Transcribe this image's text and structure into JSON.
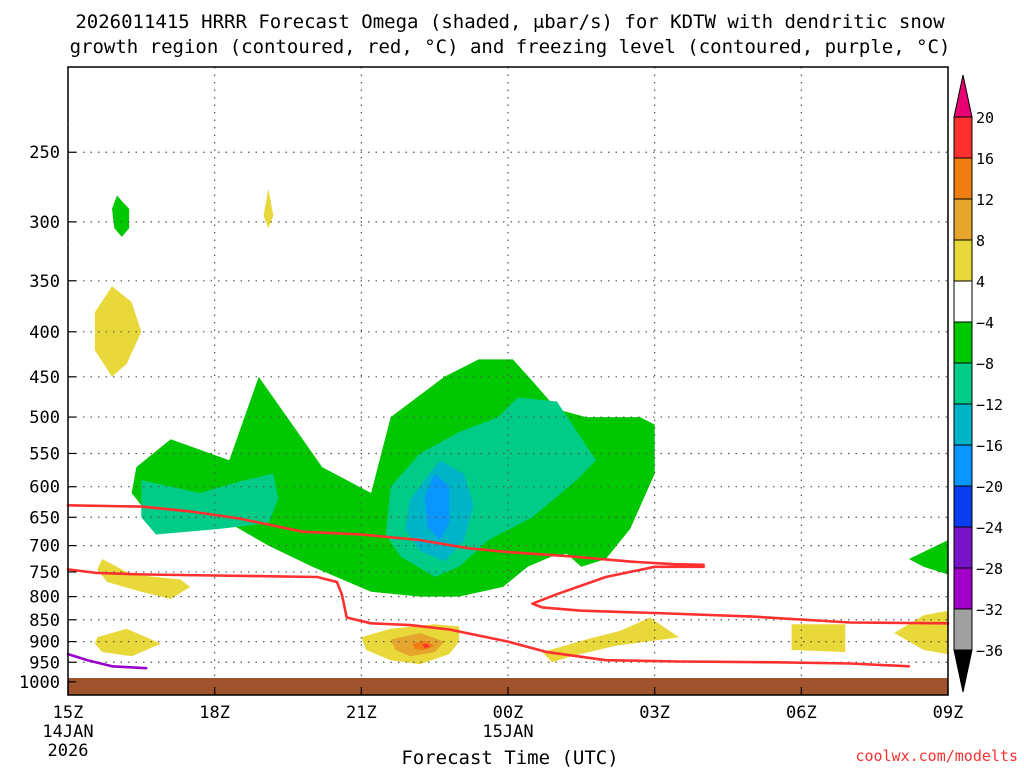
{
  "chart_data": {
    "type": "contour",
    "title_line1": "2026011415 HRRR Forecast Omega (shaded, μbar/s) for KDTW with dendritic snow",
    "title_line2": "growth region (contoured, red, °C) and freezing level (contoured, purple, °C)",
    "xlabel": "Forecast Time (UTC)",
    "ylabel": "",
    "credit": "coolwx.com/modelts",
    "xlim": [
      15,
      33
    ],
    "ylim": [
      200,
      1035
    ],
    "y_scale": "log-pressure (inverted)",
    "x_ticks": [
      {
        "hour": 15,
        "label": "15Z",
        "sub1": "14JAN",
        "sub2": "2026"
      },
      {
        "hour": 18,
        "label": "18Z",
        "sub1": "",
        "sub2": ""
      },
      {
        "hour": 21,
        "label": "21Z",
        "sub1": "",
        "sub2": ""
      },
      {
        "hour": 24,
        "label": "00Z",
        "sub1": "15JAN",
        "sub2": ""
      },
      {
        "hour": 27,
        "label": "03Z",
        "sub1": "",
        "sub2": ""
      },
      {
        "hour": 30,
        "label": "06Z",
        "sub1": "",
        "sub2": ""
      },
      {
        "hour": 33,
        "label": "09Z",
        "sub1": "",
        "sub2": ""
      }
    ],
    "y_ticks": [
      250,
      300,
      350,
      400,
      450,
      500,
      550,
      600,
      650,
      700,
      750,
      800,
      850,
      900,
      950,
      1000
    ],
    "grid": true,
    "colorbar": {
      "position": "right",
      "levels": [
        "20",
        "16",
        "12",
        "8",
        "4",
        "−4",
        "−8",
        "−12",
        "−16",
        "−20",
        "−24",
        "−28",
        "−32",
        "−36"
      ],
      "colors": [
        "#e60073",
        "#ff3030",
        "#f07d14",
        "#e6a52d",
        "#e8d839",
        "#ffffff",
        "#00c800",
        "#00cc88",
        "#00b4c8",
        "#0a96ff",
        "#0a3cf0",
        "#7814c8",
        "#a000c8",
        "#a0a0a0",
        "#000000"
      ]
    },
    "ground_color": "#a0522d",
    "shaded_regions": [
      {
        "name": "green-omega-main-left",
        "color": "#00c800",
        "points": [
          [
            16.4,
            570
          ],
          [
            17.1,
            530
          ],
          [
            18.3,
            560
          ],
          [
            18.9,
            450
          ],
          [
            19.8,
            530
          ],
          [
            20.2,
            570
          ],
          [
            21.2,
            610
          ],
          [
            21.6,
            500
          ],
          [
            22.7,
            450
          ],
          [
            23.4,
            430
          ],
          [
            24.1,
            430
          ],
          [
            24.5,
            455
          ],
          [
            25.0,
            490
          ],
          [
            25.6,
            500
          ],
          [
            26.7,
            500
          ],
          [
            27.0,
            510
          ],
          [
            27.0,
            580
          ],
          [
            26.5,
            670
          ],
          [
            26.0,
            725
          ],
          [
            25.5,
            740
          ],
          [
            25.2,
            715
          ],
          [
            24.9,
            720
          ],
          [
            24.4,
            740
          ],
          [
            23.9,
            780
          ],
          [
            23.0,
            800
          ],
          [
            22.2,
            800
          ],
          [
            21.2,
            790
          ],
          [
            20.0,
            740
          ],
          [
            19.1,
            700
          ],
          [
            18.3,
            660
          ],
          [
            17.2,
            640
          ],
          [
            16.6,
            640
          ],
          [
            16.3,
            610
          ]
        ]
      },
      {
        "name": "green-omega-right-edge",
        "color": "#00c800",
        "points": [
          [
            32.2,
            725
          ],
          [
            33.0,
            690
          ],
          [
            33.0,
            755
          ],
          [
            32.5,
            740
          ]
        ]
      },
      {
        "name": "green-omega-upper",
        "color": "#00c800",
        "points": [
          [
            16.0,
            280
          ],
          [
            16.25,
            290
          ],
          [
            16.25,
            305
          ],
          [
            16.1,
            312
          ],
          [
            15.95,
            305
          ],
          [
            15.9,
            290
          ]
        ]
      },
      {
        "name": "teal-omega-left",
        "color": "#00cc88",
        "points": [
          [
            16.5,
            590
          ],
          [
            17.7,
            610
          ],
          [
            18.6,
            590
          ],
          [
            19.2,
            580
          ],
          [
            19.3,
            620
          ],
          [
            19.1,
            660
          ],
          [
            18.1,
            670
          ],
          [
            16.8,
            680
          ],
          [
            16.5,
            650
          ]
        ]
      },
      {
        "name": "teal-omega-center",
        "color": "#00cc88",
        "points": [
          [
            21.6,
            600
          ],
          [
            22.2,
            550
          ],
          [
            23.0,
            520
          ],
          [
            23.8,
            500
          ],
          [
            24.2,
            475
          ],
          [
            25.0,
            480
          ],
          [
            25.8,
            560
          ],
          [
            25.4,
            590
          ],
          [
            24.5,
            650
          ],
          [
            23.6,
            690
          ],
          [
            23.0,
            740
          ],
          [
            22.5,
            760
          ],
          [
            21.8,
            720
          ],
          [
            21.5,
            680
          ]
        ]
      },
      {
        "name": "cyan-omega-center",
        "color": "#00b4c8",
        "points": [
          [
            22.0,
            620
          ],
          [
            22.6,
            560
          ],
          [
            23.1,
            580
          ],
          [
            23.3,
            630
          ],
          [
            23.1,
            690
          ],
          [
            22.7,
            730
          ],
          [
            22.2,
            710
          ],
          [
            21.9,
            670
          ]
        ]
      },
      {
        "name": "blue-omega-center",
        "color": "#0a96ff",
        "points": [
          [
            22.5,
            580
          ],
          [
            22.8,
            600
          ],
          [
            22.8,
            660
          ],
          [
            22.6,
            690
          ],
          [
            22.35,
            665
          ],
          [
            22.3,
            615
          ]
        ]
      },
      {
        "name": "yellow-omega-upper-left",
        "color": "#e8d839",
        "points": [
          [
            15.9,
            355
          ],
          [
            16.3,
            370
          ],
          [
            16.5,
            400
          ],
          [
            16.2,
            435
          ],
          [
            15.9,
            450
          ],
          [
            15.55,
            420
          ],
          [
            15.55,
            380
          ]
        ]
      },
      {
        "name": "yellow-omega-upper-small",
        "color": "#e8d839",
        "points": [
          [
            19.1,
            275
          ],
          [
            19.2,
            295
          ],
          [
            19.1,
            305
          ],
          [
            19.0,
            295
          ]
        ]
      },
      {
        "name": "yellow-omega-low-left",
        "color": "#e8d839",
        "points": [
          [
            15.7,
            725
          ],
          [
            16.3,
            755
          ],
          [
            17.3,
            765
          ],
          [
            17.5,
            780
          ],
          [
            17.1,
            805
          ],
          [
            16.5,
            790
          ],
          [
            15.8,
            770
          ],
          [
            15.6,
            745
          ]
        ]
      },
      {
        "name": "yellow-omega-near-surface-left",
        "color": "#e8d839",
        "points": [
          [
            15.6,
            890
          ],
          [
            16.2,
            870
          ],
          [
            16.9,
            905
          ],
          [
            16.3,
            935
          ],
          [
            15.7,
            925
          ],
          [
            15.55,
            905
          ]
        ]
      },
      {
        "name": "yellow-omega-center-low",
        "color": "#e8d839",
        "points": [
          [
            21.0,
            890
          ],
          [
            21.6,
            870
          ],
          [
            22.5,
            860
          ],
          [
            23.0,
            865
          ],
          [
            23.0,
            900
          ],
          [
            22.8,
            930
          ],
          [
            22.2,
            955
          ],
          [
            21.6,
            945
          ],
          [
            21.1,
            920
          ]
        ]
      },
      {
        "name": "gold-omega-center-low",
        "color": "#e6a52d",
        "points": [
          [
            21.6,
            895
          ],
          [
            22.2,
            880
          ],
          [
            22.7,
            900
          ],
          [
            22.5,
            925
          ],
          [
            22.0,
            935
          ],
          [
            21.7,
            920
          ]
        ]
      },
      {
        "name": "orange-omega-center-low",
        "color": "#f07d14",
        "points": [
          [
            22.05,
            905
          ],
          [
            22.3,
            898
          ],
          [
            22.5,
            910
          ],
          [
            22.3,
            920
          ],
          [
            22.1,
            918
          ]
        ]
      },
      {
        "name": "red-omega-center-low",
        "color": "#ff3030",
        "points": [
          [
            22.25,
            907
          ],
          [
            22.35,
            905
          ],
          [
            22.4,
            912
          ],
          [
            22.3,
            916
          ]
        ]
      },
      {
        "name": "yellow-omega-0130z",
        "color": "#e8d839",
        "points": [
          [
            24.7,
            925
          ],
          [
            25.6,
            895
          ],
          [
            26.3,
            875
          ],
          [
            26.9,
            845
          ],
          [
            27.5,
            890
          ],
          [
            26.2,
            910
          ],
          [
            25.3,
            935
          ],
          [
            24.9,
            950
          ]
        ]
      },
      {
        "name": "yellow-omega-0600z",
        "color": "#e8d839",
        "points": [
          [
            29.8,
            860
          ],
          [
            30.9,
            860
          ],
          [
            30.9,
            925
          ],
          [
            29.8,
            920
          ]
        ]
      },
      {
        "name": "yellow-omega-0900z-edge",
        "color": "#e8d839",
        "points": [
          [
            31.9,
            880
          ],
          [
            32.5,
            840
          ],
          [
            33.0,
            830
          ],
          [
            33.0,
            930
          ],
          [
            32.5,
            920
          ]
        ]
      }
    ],
    "contours": [
      {
        "name": "dgz-upper-boundary",
        "color": "#ff3030",
        "points": [
          [
            15,
            630
          ],
          [
            16.5,
            632
          ],
          [
            17.5,
            640
          ],
          [
            18.5,
            652
          ],
          [
            19.8,
            675
          ],
          [
            21.0,
            680
          ],
          [
            22.2,
            690
          ],
          [
            23.2,
            705
          ],
          [
            24.0,
            712
          ],
          [
            25.3,
            720
          ],
          [
            26.5,
            730
          ],
          [
            27.4,
            735
          ],
          [
            28.0,
            736
          ]
        ]
      },
      {
        "name": "dgz-lower-boundary",
        "color": "#ff3030",
        "points": [
          [
            15,
            745
          ],
          [
            15.6,
            752
          ],
          [
            16.6,
            755
          ],
          [
            18.0,
            757
          ],
          [
            20.1,
            760
          ],
          [
            20.5,
            770
          ],
          [
            20.6,
            795
          ],
          [
            20.7,
            845
          ],
          [
            21.2,
            858
          ],
          [
            22.0,
            862
          ],
          [
            22.8,
            872
          ],
          [
            24.0,
            900
          ],
          [
            24.8,
            925
          ],
          [
            26.0,
            945
          ],
          [
            27.5,
            948
          ],
          [
            29.5,
            950
          ],
          [
            31.0,
            953
          ],
          [
            32.2,
            960
          ]
        ]
      },
      {
        "name": "dgz-mid-boundary",
        "color": "#ff3030",
        "points": [
          [
            28.0,
            740
          ],
          [
            27.0,
            740
          ],
          [
            26.0,
            760
          ],
          [
            25.0,
            795
          ],
          [
            24.5,
            815
          ],
          [
            24.7,
            823
          ],
          [
            25.5,
            830
          ],
          [
            27.0,
            835
          ],
          [
            29.0,
            843
          ],
          [
            31.0,
            856
          ],
          [
            33.0,
            858
          ]
        ]
      },
      {
        "name": "freezing-level",
        "color": "#9900cc",
        "points": [
          [
            15,
            930
          ],
          [
            15.4,
            945
          ],
          [
            15.9,
            960
          ],
          [
            16.6,
            965
          ]
        ]
      }
    ]
  }
}
